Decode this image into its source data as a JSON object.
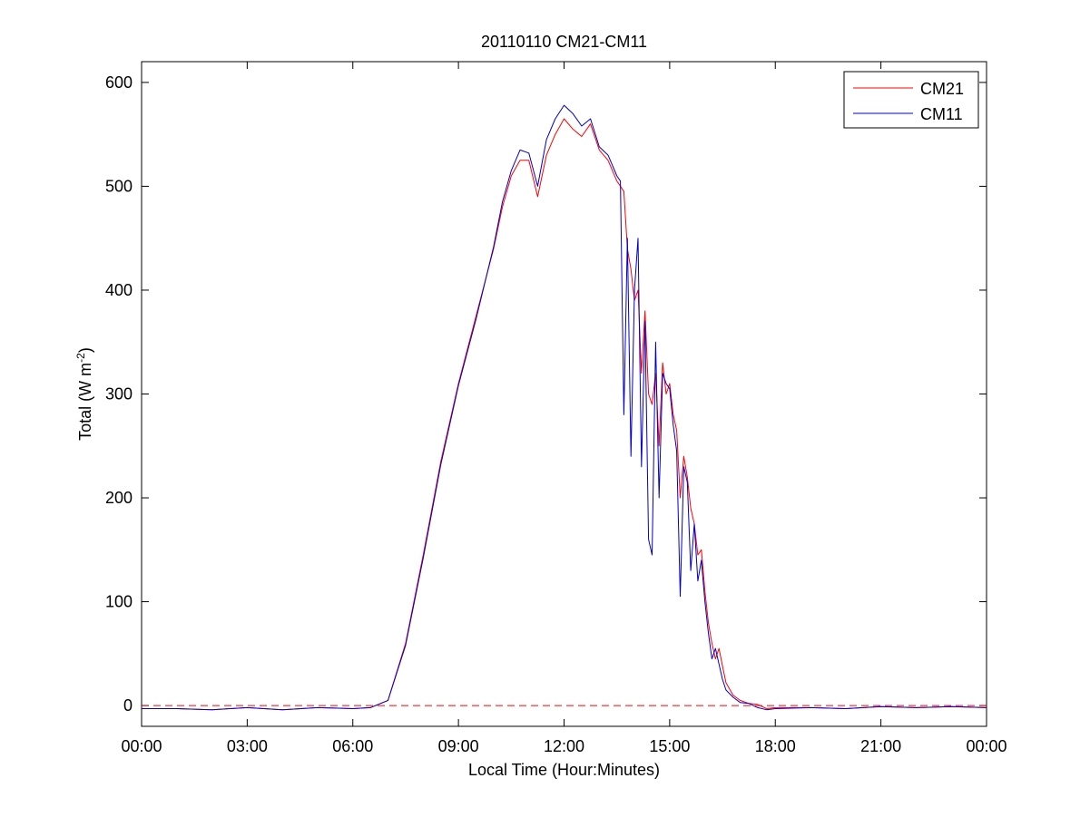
{
  "chart_data": {
    "type": "line",
    "title": "20110110 CM21-CM11",
    "xlabel": "Local Time (Hour:Minutes)",
    "ylabel_main": "Total (W m",
    "ylabel_sup": "-2",
    "ylabel_close": ")",
    "xlim": [
      0,
      24
    ],
    "ylim": [
      -20,
      620
    ],
    "x_unit": "hours of local time",
    "x_ticks": [
      0,
      3,
      6,
      9,
      12,
      15,
      18,
      21,
      24
    ],
    "x_tick_labels": [
      "00:00",
      "03:00",
      "06:00",
      "09:00",
      "12:00",
      "15:00",
      "18:00",
      "21:00",
      "00:00"
    ],
    "y_ticks": [
      0,
      100,
      200,
      300,
      400,
      500,
      600
    ],
    "y_tick_labels": [
      "0",
      "100",
      "200",
      "300",
      "400",
      "500",
      "600"
    ],
    "grid": false,
    "legend_position": "top-right",
    "reference_line": {
      "y": 0,
      "style": "dashed",
      "color": "#ff0000"
    },
    "series": [
      {
        "name": "CM21",
        "color": "#ff0000",
        "x": [
          0,
          1,
          2,
          3,
          4,
          5,
          6,
          6.5,
          7,
          7.5,
          8,
          8.5,
          9,
          9.5,
          10,
          10.25,
          10.5,
          10.75,
          11,
          11.25,
          11.5,
          11.75,
          12,
          12.25,
          12.5,
          12.75,
          13,
          13.25,
          13.5,
          13.6,
          13.7,
          13.8,
          13.9,
          14,
          14.1,
          14.2,
          14.3,
          14.4,
          14.5,
          14.6,
          14.7,
          14.8,
          14.9,
          15,
          15.1,
          15.2,
          15.3,
          15.4,
          15.5,
          15.6,
          15.7,
          15.8,
          15.9,
          16,
          16.1,
          16.2,
          16.3,
          16.4,
          16.5,
          16.6,
          16.8,
          17,
          17.25,
          17.5,
          17.75,
          18,
          19,
          20,
          21,
          22,
          23,
          24
        ],
        "y": [
          -3,
          -3,
          -4,
          -2,
          -4,
          -2,
          -3,
          -2,
          5,
          60,
          145,
          235,
          310,
          375,
          440,
          480,
          510,
          525,
          525,
          490,
          530,
          550,
          565,
          555,
          548,
          560,
          535,
          525,
          505,
          500,
          495,
          440,
          420,
          390,
          400,
          320,
          380,
          300,
          290,
          320,
          250,
          330,
          300,
          310,
          280,
          265,
          200,
          240,
          220,
          190,
          175,
          145,
          150,
          110,
          80,
          60,
          45,
          55,
          38,
          22,
          10,
          5,
          2,
          1,
          -3,
          -2,
          -2,
          -3,
          -1,
          -2,
          -1,
          -2
        ]
      },
      {
        "name": "CM11",
        "color": "#0000cc",
        "x": [
          0,
          1,
          2,
          3,
          4,
          5,
          6,
          6.5,
          7,
          7.5,
          8,
          8.5,
          9,
          9.5,
          10,
          10.25,
          10.5,
          10.75,
          11,
          11.25,
          11.5,
          11.75,
          12,
          12.25,
          12.5,
          12.75,
          13,
          13.25,
          13.5,
          13.6,
          13.7,
          13.8,
          13.9,
          14,
          14.1,
          14.2,
          14.3,
          14.4,
          14.5,
          14.6,
          14.7,
          14.8,
          14.9,
          15,
          15.1,
          15.2,
          15.3,
          15.4,
          15.5,
          15.6,
          15.7,
          15.8,
          15.9,
          16,
          16.1,
          16.2,
          16.3,
          16.4,
          16.5,
          16.6,
          16.8,
          17,
          17.25,
          17.5,
          17.75,
          18,
          19,
          20,
          21,
          22,
          23,
          24
        ],
        "y": [
          -3,
          -3,
          -4,
          -2,
          -4,
          -2,
          -3,
          -2,
          5,
          58,
          142,
          232,
          308,
          372,
          442,
          485,
          515,
          535,
          532,
          500,
          545,
          565,
          578,
          570,
          558,
          565,
          538,
          530,
          510,
          505,
          280,
          450,
          240,
          400,
          450,
          230,
          370,
          160,
          145,
          350,
          200,
          320,
          310,
          305,
          270,
          245,
          105,
          230,
          215,
          130,
          175,
          120,
          140,
          100,
          70,
          45,
          55,
          40,
          25,
          15,
          8,
          3,
          2,
          -2,
          -4,
          -3,
          -2,
          -3,
          -1,
          -2,
          -1,
          -2
        ]
      }
    ]
  }
}
